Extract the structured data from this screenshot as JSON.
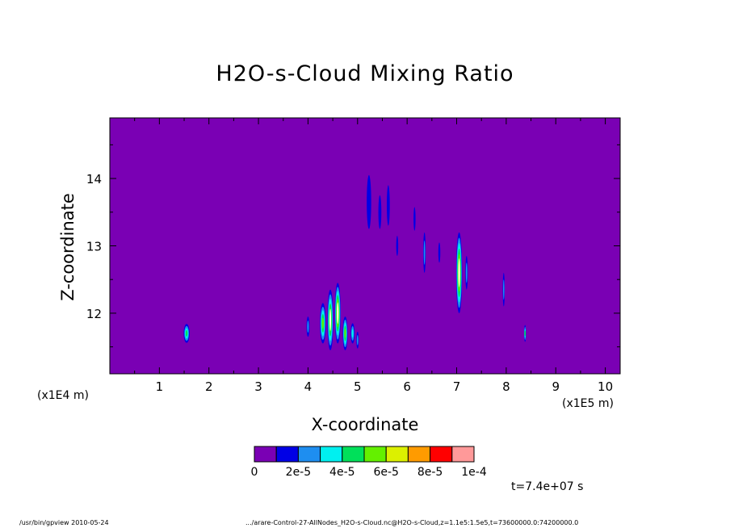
{
  "chart_data": {
    "type": "heatmap",
    "title": "H2O-s-Cloud Mixing Ratio",
    "xlabel": "X-coordinate",
    "ylabel": "Z-coordinate",
    "x_unit_label": "(x1E4 m)",
    "x_scale_label": "(x1E5 m)",
    "time_label": "t=7.4e+07 s",
    "xlim": [
      0,
      10.3
    ],
    "ylim": [
      11.1,
      14.9
    ],
    "x_ticks": [
      "1",
      "2",
      "3",
      "4",
      "5",
      "6",
      "7",
      "8",
      "9",
      "10"
    ],
    "x_tick_values": [
      1,
      2,
      3,
      4,
      5,
      6,
      7,
      8,
      9,
      10
    ],
    "y_ticks": [
      "12",
      "13",
      "14"
    ],
    "y_tick_values": [
      12,
      13,
      14
    ],
    "background_color": "#7a00b4",
    "colorbar": {
      "colors": [
        "#7a00b4",
        "#0000e6",
        "#1e8ef0",
        "#00f0f0",
        "#00e05a",
        "#64f000",
        "#dcf000",
        "#ff9b00",
        "#ff0000",
        "#ff9999"
      ],
      "labels": [
        "0",
        "2e-5",
        "4e-5",
        "6e-5",
        "8e-5",
        "1e-4"
      ]
    },
    "features": [
      {
        "x": 1.55,
        "z": 11.7,
        "w": 0.12,
        "h": 0.28,
        "level": 4
      },
      {
        "x": 4.0,
        "z": 11.8,
        "w": 0.06,
        "h": 0.3,
        "level": 2
      },
      {
        "x": 4.3,
        "z": 11.85,
        "w": 0.12,
        "h": 0.6,
        "level": 5
      },
      {
        "x": 4.45,
        "z": 11.9,
        "w": 0.12,
        "h": 0.9,
        "level": 6
      },
      {
        "x": 4.6,
        "z": 12.0,
        "w": 0.12,
        "h": 0.9,
        "level": 7
      },
      {
        "x": 4.75,
        "z": 11.7,
        "w": 0.1,
        "h": 0.5,
        "level": 5
      },
      {
        "x": 4.9,
        "z": 11.7,
        "w": 0.08,
        "h": 0.3,
        "level": 3
      },
      {
        "x": 5.0,
        "z": 11.6,
        "w": 0.05,
        "h": 0.25,
        "level": 2
      },
      {
        "x": 5.23,
        "z": 13.65,
        "w": 0.09,
        "h": 0.8,
        "level": 1
      },
      {
        "x": 5.45,
        "z": 13.5,
        "w": 0.06,
        "h": 0.5,
        "level": 1
      },
      {
        "x": 5.62,
        "z": 13.6,
        "w": 0.06,
        "h": 0.6,
        "level": 1
      },
      {
        "x": 5.8,
        "z": 13.0,
        "w": 0.04,
        "h": 0.3,
        "level": 1
      },
      {
        "x": 6.15,
        "z": 13.4,
        "w": 0.04,
        "h": 0.35,
        "level": 1
      },
      {
        "x": 6.35,
        "z": 12.9,
        "w": 0.05,
        "h": 0.6,
        "level": 2
      },
      {
        "x": 6.65,
        "z": 12.9,
        "w": 0.04,
        "h": 0.3,
        "level": 1
      },
      {
        "x": 7.05,
        "z": 12.6,
        "w": 0.12,
        "h": 1.2,
        "level": 7
      },
      {
        "x": 7.2,
        "z": 12.6,
        "w": 0.05,
        "h": 0.5,
        "level": 2
      },
      {
        "x": 7.95,
        "z": 12.35,
        "w": 0.04,
        "h": 0.5,
        "level": 2
      },
      {
        "x": 8.38,
        "z": 11.7,
        "w": 0.04,
        "h": 0.25,
        "level": 4
      }
    ]
  },
  "footer": {
    "left": "/usr/bin/gpview   2010-05-24",
    "right": ".../arare-Control-27-AllNodes_H2O-s-Cloud.nc@H2O-s-Cloud,z=1.1e5:1.5e5,t=73600000.0:74200000.0"
  }
}
